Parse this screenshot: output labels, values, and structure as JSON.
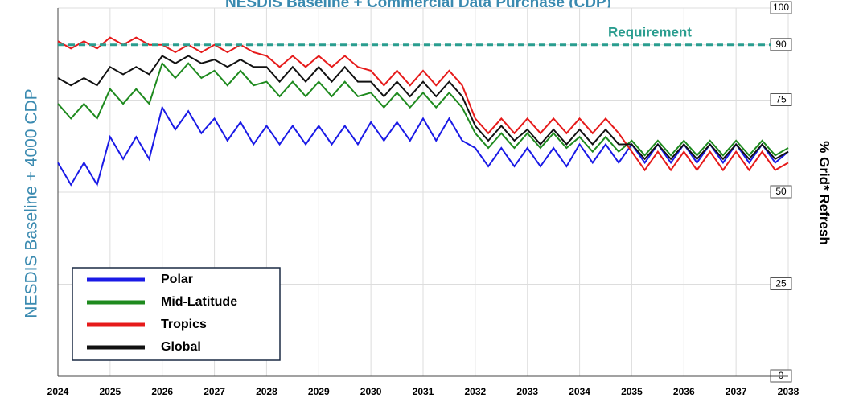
{
  "chart_data": {
    "type": "line",
    "title": "NESDIS Baseline + Commercial Data Purchase (CDP)",
    "ylabel_left": "NESDIS Baseline + 4000 CDP",
    "ylabel_right": "% Grid* Refresh",
    "requirement": {
      "label": "Requirement",
      "value": 90,
      "color": "#2a9d8f"
    },
    "x": [
      2024,
      2024.25,
      2024.5,
      2024.75,
      2025,
      2025.25,
      2025.5,
      2025.75,
      2026,
      2026.25,
      2026.5,
      2026.75,
      2027,
      2027.25,
      2027.5,
      2027.75,
      2028,
      2028.25,
      2028.5,
      2028.75,
      2029,
      2029.25,
      2029.5,
      2029.75,
      2030,
      2030.25,
      2030.5,
      2030.75,
      2031,
      2031.25,
      2031.5,
      2031.75,
      2032,
      2032.25,
      2032.5,
      2032.75,
      2033,
      2033.25,
      2033.5,
      2033.75,
      2034,
      2034.25,
      2034.5,
      2034.75,
      2035,
      2035.25,
      2035.5,
      2035.75,
      2036,
      2036.25,
      2036.5,
      2036.75,
      2037,
      2037.25,
      2037.5,
      2037.75,
      2038
    ],
    "series": [
      {
        "name": "Polar",
        "color": "#1a1ae6",
        "values": [
          58,
          52,
          58,
          52,
          65,
          59,
          65,
          59,
          73,
          67,
          72,
          66,
          70,
          64,
          69,
          63,
          68,
          63,
          68,
          63,
          68,
          63,
          68,
          63,
          69,
          64,
          69,
          64,
          70,
          64,
          70,
          64,
          62,
          57,
          62,
          57,
          62,
          57,
          62,
          57,
          63,
          58,
          63,
          58,
          63,
          58,
          63,
          58,
          63,
          58,
          63,
          58,
          63,
          58,
          63,
          58,
          61
        ]
      },
      {
        "name": "Mid-Latitude",
        "color": "#1e8a1e",
        "values": [
          74,
          70,
          74,
          70,
          78,
          74,
          78,
          74,
          85,
          81,
          85,
          81,
          83,
          79,
          83,
          79,
          80,
          76,
          80,
          76,
          80,
          76,
          80,
          76,
          77,
          73,
          77,
          73,
          77,
          73,
          77,
          73,
          66,
          62,
          66,
          62,
          66,
          62,
          66,
          62,
          65,
          61,
          65,
          61,
          64,
          60,
          64,
          60,
          64,
          60,
          64,
          60,
          64,
          60,
          64,
          60,
          62
        ]
      },
      {
        "name": "Tropics",
        "color": "#e61a1a",
        "values": [
          91,
          89,
          91,
          89,
          92,
          90,
          92,
          90,
          90,
          88,
          90,
          88,
          90,
          88,
          90,
          88,
          87,
          84,
          87,
          84,
          87,
          84,
          87,
          84,
          83,
          79,
          83,
          79,
          83,
          79,
          83,
          79,
          70,
          66,
          70,
          66,
          70,
          66,
          70,
          66,
          70,
          66,
          70,
          66,
          61,
          56,
          61,
          56,
          61,
          56,
          61,
          56,
          61,
          56,
          61,
          56,
          58
        ]
      },
      {
        "name": "Global",
        "color": "#111111",
        "values": [
          81,
          79,
          81,
          79,
          84,
          82,
          84,
          82,
          87,
          85,
          87,
          85,
          86,
          84,
          86,
          84,
          84,
          80,
          84,
          80,
          84,
          80,
          84,
          80,
          80,
          76,
          80,
          76,
          80,
          76,
          80,
          76,
          68,
          64,
          68,
          64,
          67,
          63,
          67,
          63,
          67,
          63,
          67,
          63,
          63,
          59,
          63,
          59,
          63,
          59,
          63,
          59,
          63,
          59,
          63,
          59,
          61
        ]
      }
    ],
    "xlim": [
      2024,
      2038
    ],
    "xticks": [
      2024,
      2025,
      2026,
      2027,
      2028,
      2029,
      2030,
      2031,
      2032,
      2033,
      2034,
      2035,
      2036,
      2037,
      2038
    ],
    "ylim": [
      0,
      100
    ],
    "yticks": [
      0,
      25,
      50,
      75,
      90,
      100
    ],
    "grid": true,
    "legend": "lower left"
  }
}
